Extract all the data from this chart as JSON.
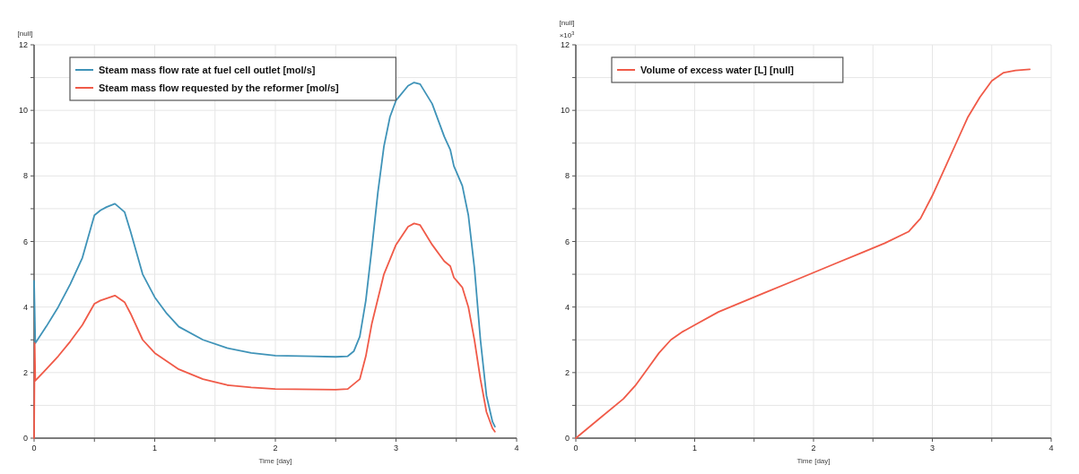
{
  "chart_data": [
    {
      "type": "line",
      "ylabel": "[null]",
      "xlabel": "Time [day]",
      "xlim": [
        0,
        4
      ],
      "ylim": [
        0,
        12
      ],
      "xticks": [
        0,
        {
          "value": 0.5,
          "label": null
        },
        1,
        {
          "value": 1.5,
          "label": null
        },
        2,
        {
          "value": 2.5,
          "label": null
        },
        3,
        {
          "value": 3.5,
          "label": null
        },
        4
      ],
      "yticks": [
        0,
        {
          "value": 1,
          "label": null
        },
        2,
        {
          "value": 3,
          "label": null
        },
        4,
        {
          "value": 5,
          "label": null
        },
        6,
        {
          "value": 7,
          "label": null
        },
        8,
        {
          "value": 9,
          "label": null
        },
        10,
        {
          "value": 11,
          "label": null
        },
        12
      ],
      "grid": true,
      "legend": "top left",
      "line_style": "solid",
      "series": [
        {
          "name": "Steam mass flow rate at fuel cell outlet [mol/s]",
          "color": "#3f93b8",
          "x": [
            0,
            0.01,
            0.1,
            0.2,
            0.3,
            0.4,
            0.5,
            0.55,
            0.6,
            0.67,
            0.75,
            0.8,
            0.9,
            1.0,
            1.1,
            1.2,
            1.4,
            1.6,
            1.8,
            2.0,
            2.3,
            2.5,
            2.6,
            2.65,
            2.7,
            2.75,
            2.8,
            2.85,
            2.9,
            2.95,
            3.0,
            3.1,
            3.15,
            3.2,
            3.3,
            3.4,
            3.45,
            3.48,
            3.55,
            3.6,
            3.65,
            3.7,
            3.75,
            3.8,
            3.82
          ],
          "values": [
            4.8,
            2.9,
            3.4,
            4.0,
            4.7,
            5.5,
            6.8,
            6.95,
            7.05,
            7.15,
            6.9,
            6.3,
            5.0,
            4.3,
            3.8,
            3.4,
            3.0,
            2.75,
            2.6,
            2.52,
            2.5,
            2.48,
            2.5,
            2.65,
            3.1,
            4.2,
            5.8,
            7.5,
            8.9,
            9.8,
            10.3,
            10.75,
            10.85,
            10.8,
            10.2,
            9.2,
            8.8,
            8.3,
            7.7,
            6.8,
            5.2,
            3.0,
            1.3,
            0.5,
            0.35
          ]
        },
        {
          "name": "Steam mass flow requested by the reformer [mol/s]",
          "color": "#f05a48",
          "x": [
            0,
            0.005,
            0.01,
            0.1,
            0.2,
            0.3,
            0.4,
            0.5,
            0.55,
            0.67,
            0.75,
            0.8,
            0.9,
            1.0,
            1.2,
            1.4,
            1.6,
            1.8,
            2.0,
            2.5,
            2.6,
            2.7,
            2.75,
            2.8,
            2.9,
            3.0,
            3.1,
            3.15,
            3.2,
            3.3,
            3.4,
            3.45,
            3.48,
            3.55,
            3.6,
            3.65,
            3.7,
            3.75,
            3.8,
            3.82
          ],
          "values": [
            0,
            2.9,
            1.75,
            2.1,
            2.5,
            2.95,
            3.45,
            4.1,
            4.2,
            4.35,
            4.15,
            3.8,
            3.0,
            2.6,
            2.1,
            1.8,
            1.62,
            1.55,
            1.5,
            1.48,
            1.5,
            1.8,
            2.5,
            3.5,
            5.0,
            5.9,
            6.45,
            6.55,
            6.5,
            5.9,
            5.4,
            5.25,
            4.9,
            4.6,
            4.0,
            3.0,
            1.8,
            0.8,
            0.3,
            0.2
          ]
        }
      ]
    },
    {
      "type": "line",
      "ylabel": "[null]",
      "xlabel": "Time [day]",
      "xlim": [
        0,
        4
      ],
      "ylim": [
        0,
        12
      ],
      "annotations": [
        "×10$^{3}$"
      ],
      "xticks": [
        0,
        {
          "value": 0.5,
          "label": null
        },
        1,
        {
          "value": 1.5,
          "label": null
        },
        2,
        {
          "value": 2.5,
          "label": null
        },
        3,
        {
          "value": 3.5,
          "label": null
        },
        4
      ],
      "yticks": [
        0,
        {
          "value": 1,
          "label": null
        },
        2,
        {
          "value": 3,
          "label": null
        },
        4,
        {
          "value": 5,
          "label": null
        },
        6,
        {
          "value": 7,
          "label": null
        },
        8,
        {
          "value": 9,
          "label": null
        },
        10,
        {
          "value": 11,
          "label": null
        },
        12
      ],
      "grid": true,
      "legend": "top left",
      "line_style": "solid",
      "series": [
        {
          "name": "Volume of excess water [L] [null]",
          "color": "#f05a48",
          "x": [
            0,
            0.2,
            0.4,
            0.5,
            0.6,
            0.7,
            0.8,
            0.9,
            1.0,
            1.2,
            1.4,
            1.6,
            1.8,
            2.0,
            2.2,
            2.4,
            2.6,
            2.8,
            2.9,
            3.0,
            3.1,
            3.2,
            3.3,
            3.4,
            3.5,
            3.6,
            3.7,
            3.82
          ],
          "values": [
            0,
            0.6,
            1.2,
            1.6,
            2.1,
            2.6,
            3.0,
            3.25,
            3.45,
            3.85,
            4.15,
            4.45,
            4.75,
            5.05,
            5.35,
            5.65,
            5.95,
            6.3,
            6.7,
            7.4,
            8.2,
            9.0,
            9.8,
            10.4,
            10.9,
            11.15,
            11.22,
            11.25
          ]
        }
      ]
    }
  ]
}
